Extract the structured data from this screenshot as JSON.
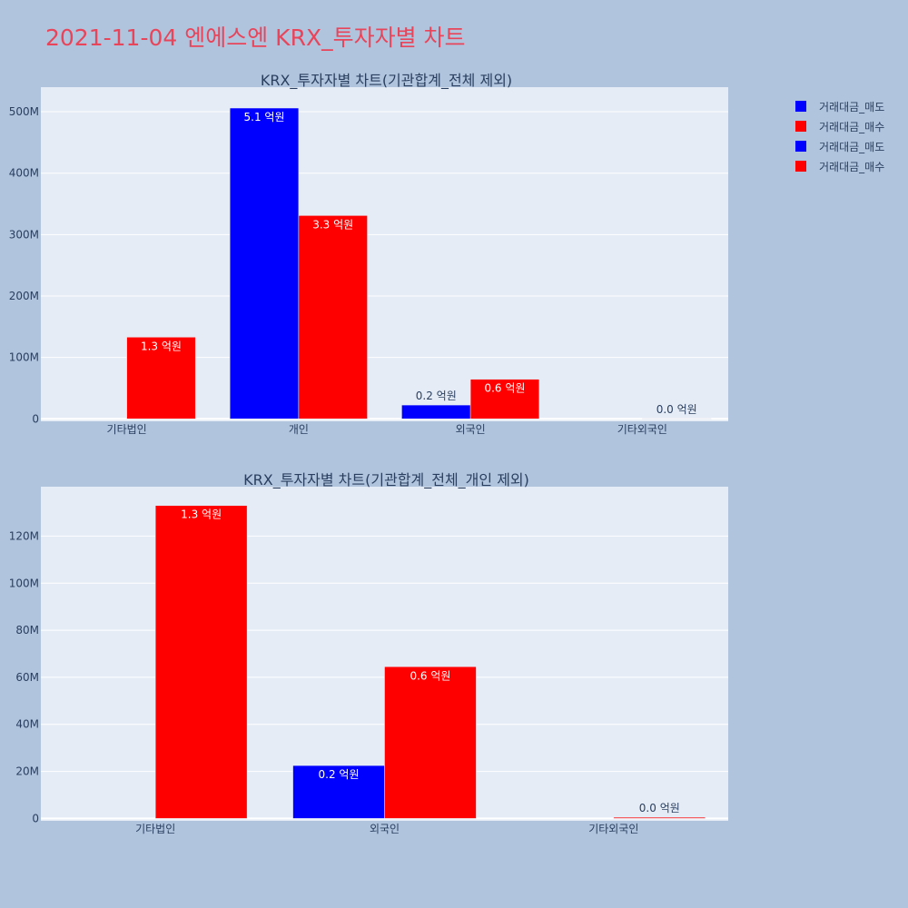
{
  "title": "2021-11-04 엔에스엔 KRX_투자자별 차트",
  "colors": {
    "sell": "#0000ff",
    "buy": "#ff0000",
    "plot_bg": "#e5ecf6",
    "page_bg": "#b0c4de",
    "title": "#e8455a"
  },
  "legend": [
    {
      "label": "거래대금_매도",
      "color": "#0000ff"
    },
    {
      "label": "거래대금_매수",
      "color": "#ff0000"
    },
    {
      "label": "거래대금_매도",
      "color": "#0000ff"
    },
    {
      "label": "거래대금_매수",
      "color": "#ff0000"
    }
  ],
  "chart_data": [
    {
      "type": "bar",
      "title": "KRX_투자자별 차트(기관합계_전체 제외)",
      "categories": [
        "기타법인",
        "개인",
        "외국인",
        "기타외국인"
      ],
      "series": [
        {
          "name": "거래대금_매도",
          "color": "#0000ff",
          "values": [
            0,
            506000000,
            22500000,
            0
          ],
          "labels": [
            "",
            "5.1 억원",
            "0.2 억원",
            ""
          ]
        },
        {
          "name": "거래대금_매수",
          "color": "#ff0000",
          "values": [
            133000000,
            331000000,
            64500000,
            500000
          ],
          "labels": [
            "1.3 억원",
            "3.3 억원",
            "0.6 억원",
            "0.0 억원"
          ]
        }
      ],
      "yticks": [
        0,
        100000000,
        200000000,
        300000000,
        400000000,
        500000000
      ],
      "yticklabels": [
        "0",
        "100M",
        "200M",
        "300M",
        "400M",
        "500M"
      ],
      "ylim": [
        -4000000,
        540000000
      ],
      "grid": true
    },
    {
      "type": "bar",
      "title": "KRX_투자자별 차트(기관합계_전체_개인 제외)",
      "categories": [
        "기타법인",
        "외국인",
        "기타외국인"
      ],
      "series": [
        {
          "name": "거래대금_매도",
          "color": "#0000ff",
          "values": [
            0,
            22500000,
            0
          ],
          "labels": [
            "",
            "0.2 억원",
            ""
          ]
        },
        {
          "name": "거래대금_매수",
          "color": "#ff0000",
          "values": [
            133000000,
            64500000,
            500000
          ],
          "labels": [
            "1.3 억원",
            "0.6 억원",
            "0.0 억원"
          ]
        }
      ],
      "yticks": [
        0,
        20000000,
        40000000,
        60000000,
        80000000,
        100000000,
        120000000
      ],
      "yticklabels": [
        "0",
        "20M",
        "40M",
        "60M",
        "80M",
        "100M",
        "120M"
      ],
      "ylim": [
        -1000000,
        141000000
      ],
      "grid": true
    }
  ]
}
